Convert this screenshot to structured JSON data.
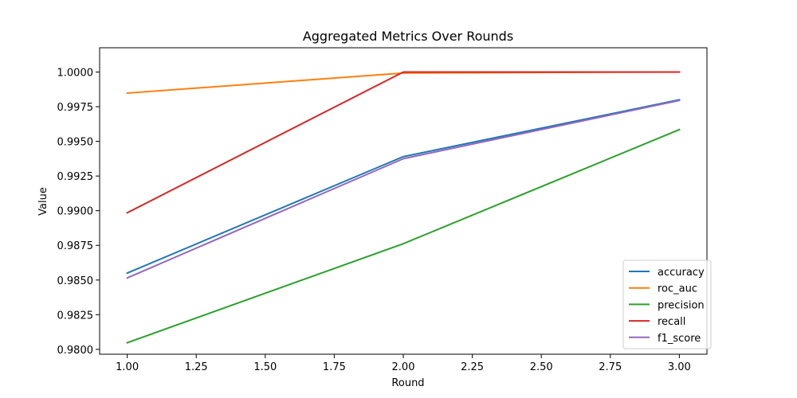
{
  "chart_data": {
    "type": "line",
    "title": "Aggregated Metrics Over Rounds",
    "xlabel": "Round",
    "ylabel": "Value",
    "x": [
      1,
      2,
      3
    ],
    "xlim": [
      0.9,
      3.1
    ],
    "ylim": [
      0.97965,
      1.00175
    ],
    "xticks": [
      1.0,
      1.25,
      1.5,
      1.75,
      2.0,
      2.25,
      2.5,
      2.75,
      3.0
    ],
    "xtick_labels": [
      "1.00",
      "1.25",
      "1.50",
      "1.75",
      "2.00",
      "2.25",
      "2.50",
      "2.75",
      "3.00"
    ],
    "yticks": [
      0.98,
      0.9825,
      0.985,
      0.9875,
      0.99,
      0.9925,
      0.995,
      0.9975,
      1.0
    ],
    "ytick_labels": [
      "0.9800",
      "0.9825",
      "0.9850",
      "0.9875",
      "0.9900",
      "0.9925",
      "0.9950",
      "0.9975",
      "1.0000"
    ],
    "grid": false,
    "legend_position": "lower-right",
    "series": [
      {
        "name": "accuracy",
        "color": "#1f77b4",
        "values": [
          0.9855,
          0.9939,
          0.998
        ]
      },
      {
        "name": "roc_auc",
        "color": "#ff7f0e",
        "values": [
          0.99848,
          0.99993,
          1.0
        ]
      },
      {
        "name": "precision",
        "color": "#2ca02c",
        "values": [
          0.98048,
          0.98762,
          0.99585
        ]
      },
      {
        "name": "recall",
        "color": "#d62728",
        "values": [
          0.98985,
          1.0,
          1.0
        ]
      },
      {
        "name": "f1_score",
        "color": "#9467bd",
        "values": [
          0.98515,
          0.99375,
          0.99795
        ]
      }
    ]
  }
}
